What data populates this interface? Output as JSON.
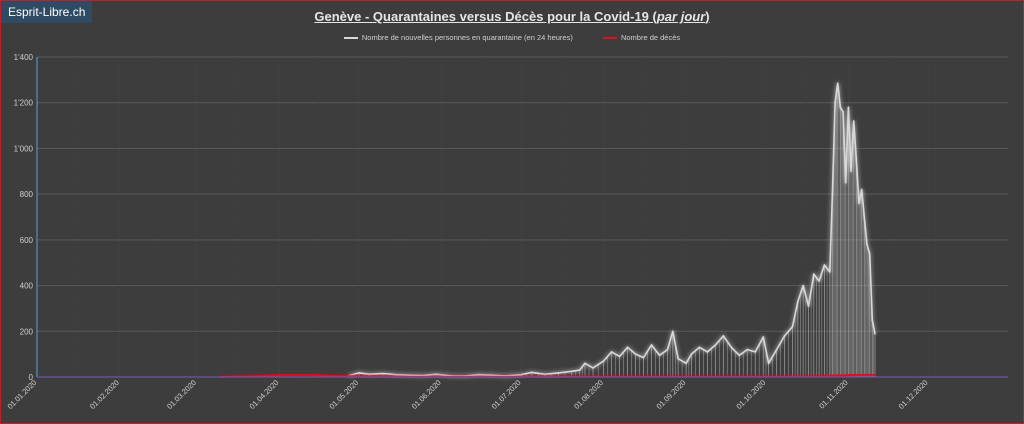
{
  "brand": "Esprit-Libre.ch",
  "title": {
    "main": "Genève - Quarantaines versus Décès pour la Covid-19 (",
    "italic": "par jour",
    "close": ")"
  },
  "colors": {
    "background": "#3d3d3d",
    "quarantine": "#d8d8d8",
    "deaths": "#e0101e",
    "grid": "#5a5a5a",
    "frame": "#c0202a"
  },
  "chart_data": {
    "type": "line",
    "title": "Genève - Quarantaines versus Décès pour la Covid-19 (par jour)",
    "x_tick_labels": [
      "01.01.2020",
      "01.02.2020",
      "01.03.2020",
      "01.04.2020",
      "01.05.2020",
      "01.06.2020",
      "01.07.2020",
      "01.08.2020",
      "01.09.2020",
      "01.10.2020",
      "01.11.2020",
      "01.12.2020"
    ],
    "y_tick_labels": [
      "0",
      "200",
      "400",
      "600",
      "800",
      "1'000",
      "1'200",
      "1'400"
    ],
    "ylim": [
      0,
      1400
    ],
    "xlim": [
      "2020-01-01",
      "2020-12-31"
    ],
    "grid": true,
    "legend_position": "top",
    "series": [
      {
        "name": "Nombre de nouvelles personnes en quarantaine (en 24 heures)",
        "color": "#d8d8d8",
        "points": [
          [
            "2020-04-27",
            5
          ],
          [
            "2020-05-01",
            18
          ],
          [
            "2020-05-05",
            12
          ],
          [
            "2020-05-10",
            15
          ],
          [
            "2020-05-15",
            10
          ],
          [
            "2020-05-20",
            8
          ],
          [
            "2020-05-25",
            6
          ],
          [
            "2020-05-30",
            12
          ],
          [
            "2020-06-05",
            5
          ],
          [
            "2020-06-10",
            4
          ],
          [
            "2020-06-15",
            10
          ],
          [
            "2020-06-20",
            8
          ],
          [
            "2020-06-25",
            5
          ],
          [
            "2020-07-01",
            10
          ],
          [
            "2020-07-05",
            20
          ],
          [
            "2020-07-10",
            12
          ],
          [
            "2020-07-15",
            18
          ],
          [
            "2020-07-20",
            25
          ],
          [
            "2020-07-23",
            30
          ],
          [
            "2020-07-25",
            60
          ],
          [
            "2020-07-28",
            40
          ],
          [
            "2020-08-01",
            70
          ],
          [
            "2020-08-04",
            110
          ],
          [
            "2020-08-07",
            90
          ],
          [
            "2020-08-10",
            130
          ],
          [
            "2020-08-13",
            100
          ],
          [
            "2020-08-16",
            85
          ],
          [
            "2020-08-19",
            140
          ],
          [
            "2020-08-22",
            95
          ],
          [
            "2020-08-25",
            120
          ],
          [
            "2020-08-27",
            200
          ],
          [
            "2020-08-29",
            80
          ],
          [
            "2020-09-01",
            60
          ],
          [
            "2020-09-03",
            100
          ],
          [
            "2020-09-06",
            130
          ],
          [
            "2020-09-09",
            110
          ],
          [
            "2020-09-12",
            140
          ],
          [
            "2020-09-15",
            180
          ],
          [
            "2020-09-18",
            130
          ],
          [
            "2020-09-21",
            95
          ],
          [
            "2020-09-24",
            120
          ],
          [
            "2020-09-27",
            110
          ],
          [
            "2020-09-30",
            175
          ],
          [
            "2020-10-02",
            60
          ],
          [
            "2020-10-05",
            120
          ],
          [
            "2020-10-08",
            180
          ],
          [
            "2020-10-11",
            220
          ],
          [
            "2020-10-13",
            330
          ],
          [
            "2020-10-15",
            400
          ],
          [
            "2020-10-17",
            310
          ],
          [
            "2020-10-19",
            450
          ],
          [
            "2020-10-21",
            420
          ],
          [
            "2020-10-23",
            490
          ],
          [
            "2020-10-25",
            460
          ],
          [
            "2020-10-26",
            800
          ],
          [
            "2020-10-27",
            1200
          ],
          [
            "2020-10-28",
            1285
          ],
          [
            "2020-10-29",
            1180
          ],
          [
            "2020-10-30",
            1160
          ],
          [
            "2020-10-31",
            850
          ],
          [
            "2020-11-01",
            1180
          ],
          [
            "2020-11-02",
            900
          ],
          [
            "2020-11-03",
            1120
          ],
          [
            "2020-11-04",
            950
          ],
          [
            "2020-11-05",
            760
          ],
          [
            "2020-11-06",
            820
          ],
          [
            "2020-11-07",
            700
          ],
          [
            "2020-11-08",
            580
          ],
          [
            "2020-11-09",
            540
          ],
          [
            "2020-11-10",
            250
          ],
          [
            "2020-11-11",
            190
          ]
        ]
      },
      {
        "name": "Nombre de décès",
        "color": "#e0101e",
        "points": [
          [
            "2020-03-10",
            0
          ],
          [
            "2020-03-15",
            1
          ],
          [
            "2020-03-20",
            2
          ],
          [
            "2020-03-25",
            4
          ],
          [
            "2020-03-31",
            7
          ],
          [
            "2020-04-05",
            9
          ],
          [
            "2020-04-10",
            10
          ],
          [
            "2020-04-15",
            8
          ],
          [
            "2020-04-20",
            5
          ],
          [
            "2020-04-25",
            3
          ],
          [
            "2020-05-01",
            2
          ],
          [
            "2020-05-10",
            1
          ],
          [
            "2020-05-20",
            0
          ],
          [
            "2020-10-15",
            1
          ],
          [
            "2020-10-20",
            2
          ],
          [
            "2020-10-25",
            4
          ],
          [
            "2020-10-30",
            6
          ],
          [
            "2020-11-04",
            9
          ],
          [
            "2020-11-08",
            11
          ],
          [
            "2020-11-11",
            10
          ]
        ]
      }
    ]
  }
}
